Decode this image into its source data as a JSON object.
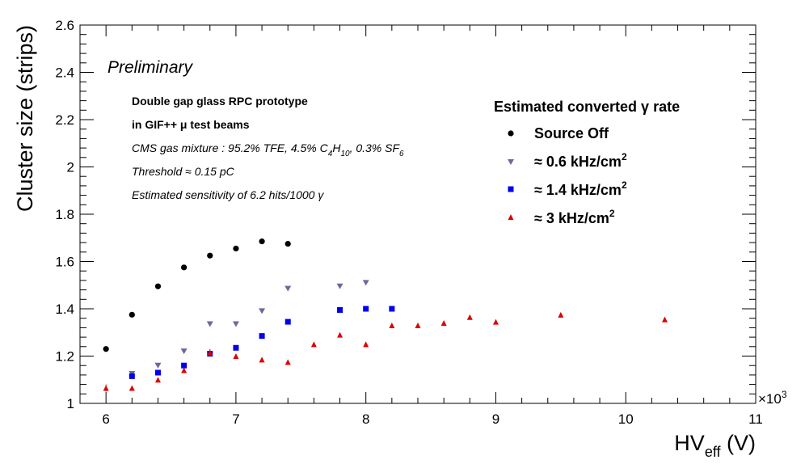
{
  "chart_data": {
    "type": "scatter",
    "xlabel": "HV",
    "xlabel_sub": "eff",
    "xlabel_unit": " (V)",
    "ylabel": "Cluster size (strips)",
    "x_multiplier": "×10",
    "x_multiplier_exp": "3",
    "xlim": [
      5800,
      11000
    ],
    "ylim": [
      1.0,
      2.6
    ],
    "x_ticks": [
      6000,
      7000,
      8000,
      9000,
      10000,
      11000
    ],
    "x_tick_labels": [
      "6",
      "7",
      "8",
      "9",
      "10",
      "11"
    ],
    "y_ticks": [
      1.0,
      1.2,
      1.4,
      1.6,
      1.8,
      2.0,
      2.2,
      2.4,
      2.6
    ],
    "y_tick_labels": [
      "1",
      "1.2",
      "1.4",
      "1.6",
      "1.8",
      "2",
      "2.2",
      "2.4",
      "2.6"
    ],
    "preliminary": "Preliminary",
    "annotations": {
      "line1": "Double gap glass RPC prototype",
      "line2": "in GIF++ μ test beams",
      "gas_prefix": "CMS gas mixture : 95.2% TFE, 4.5% C",
      "gas_sub1": "4",
      "gas_mid1": "H",
      "gas_sub2": "10",
      "gas_mid2": ", 0.3% SF",
      "gas_sub3": "6",
      "threshold": "Threshold ≈ 0.15 pC",
      "sensitivity": "Estimated sensitivity of 6.2 hits/1000 γ"
    },
    "legend": {
      "title": "Estimated converted γ rate",
      "position": "top-right",
      "entries": [
        {
          "label": "Source Off",
          "unit": "",
          "sup": ""
        },
        {
          "label": "≈ 0.6 kHz/cm",
          "unit": "",
          "sup": "2"
        },
        {
          "label": "≈ 1.4 kHz/cm",
          "unit": "",
          "sup": "2"
        },
        {
          "label": "≈ 3 kHz/cm",
          "unit": "",
          "sup": "2"
        }
      ]
    },
    "series": [
      {
        "name": "Source Off",
        "marker": "circle",
        "color": "#000000",
        "x": [
          6000,
          6200,
          6400,
          6600,
          6800,
          7000,
          7200,
          7400
        ],
        "y": [
          1.23,
          1.375,
          1.495,
          1.575,
          1.625,
          1.655,
          1.685,
          1.675
        ]
      },
      {
        "name": "≈ 0.6 kHz/cm2",
        "marker": "triangle-down",
        "color": "#6a6a9a",
        "x": [
          6200,
          6400,
          6600,
          6800,
          7000,
          7200,
          7400,
          7800,
          8000
        ],
        "y": [
          1.125,
          1.16,
          1.22,
          1.335,
          1.335,
          1.39,
          1.485,
          1.495,
          1.51
        ]
      },
      {
        "name": "≈ 1.4 kHz/cm2",
        "marker": "square",
        "color": "#0000ee",
        "x": [
          6200,
          6400,
          6600,
          6800,
          7000,
          7200,
          7400,
          7800,
          8000,
          8200
        ],
        "y": [
          1.115,
          1.13,
          1.16,
          1.21,
          1.235,
          1.285,
          1.345,
          1.395,
          1.4,
          1.4
        ]
      },
      {
        "name": "≈ 3 kHz/cm2",
        "marker": "triangle-up",
        "color": "#dd0000",
        "x": [
          6000,
          6200,
          6400,
          6600,
          6800,
          7000,
          7200,
          7400,
          7600,
          7800,
          8000,
          8200,
          8400,
          8600,
          8800,
          9000,
          9500,
          10300
        ],
        "y": [
          1.065,
          1.065,
          1.1,
          1.14,
          1.215,
          1.2,
          1.185,
          1.175,
          1.25,
          1.29,
          1.25,
          1.33,
          1.33,
          1.34,
          1.365,
          1.345,
          1.375,
          1.355
        ],
        "y_err": [
          0.015,
          0.0,
          0.0,
          0.01,
          0.015,
          0.0,
          0.0,
          0.0,
          0.0,
          0.0,
          0.0,
          0.0,
          0.0,
          0.0,
          0.0,
          0.0,
          0.0,
          0.0
        ]
      }
    ]
  }
}
